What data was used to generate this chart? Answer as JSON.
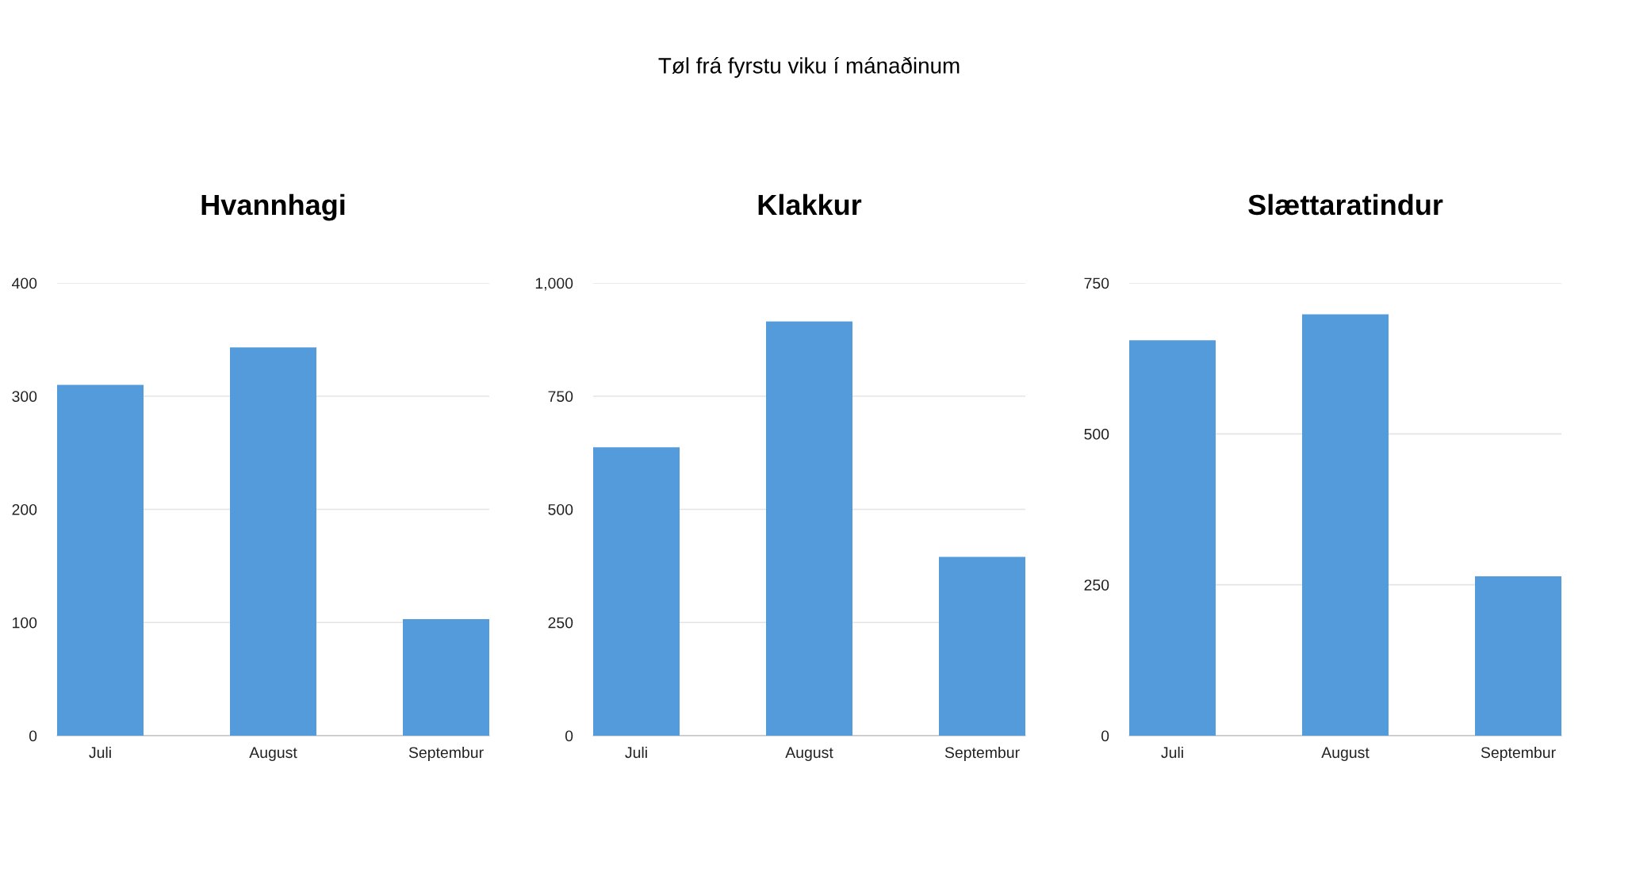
{
  "chart_data": [
    {
      "type": "bar",
      "title": "Hvannhagi",
      "categories": [
        "Juli",
        "August",
        "Septembur"
      ],
      "values": [
        310,
        343,
        103
      ],
      "color": "#539bdb",
      "ylim": [
        0,
        400
      ],
      "yticks": [
        0,
        100,
        200,
        300,
        400
      ],
      "grid": "y"
    },
    {
      "type": "bar",
      "title": "Klakkur",
      "categories": [
        "Juli",
        "August",
        "Septembur"
      ],
      "values": [
        637,
        915,
        395
      ],
      "color": "#539bdb",
      "ylim": [
        0,
        1000
      ],
      "yticks": [
        0,
        250,
        500,
        750,
        {
          "value": 1000,
          "label": "1,000"
        }
      ],
      "grid": "y",
      "annotations": [
        "Tøl frá fyrstu viku í mánaðinum"
      ]
    },
    {
      "type": "bar",
      "title": "Slættaratindur",
      "categories": [
        "Juli",
        "August",
        "Septembur"
      ],
      "values": [
        655,
        698,
        264
      ],
      "color": "#539bdb",
      "ylim": [
        0,
        750
      ],
      "yticks": [
        0,
        250,
        500,
        750
      ],
      "grid": "y"
    }
  ]
}
